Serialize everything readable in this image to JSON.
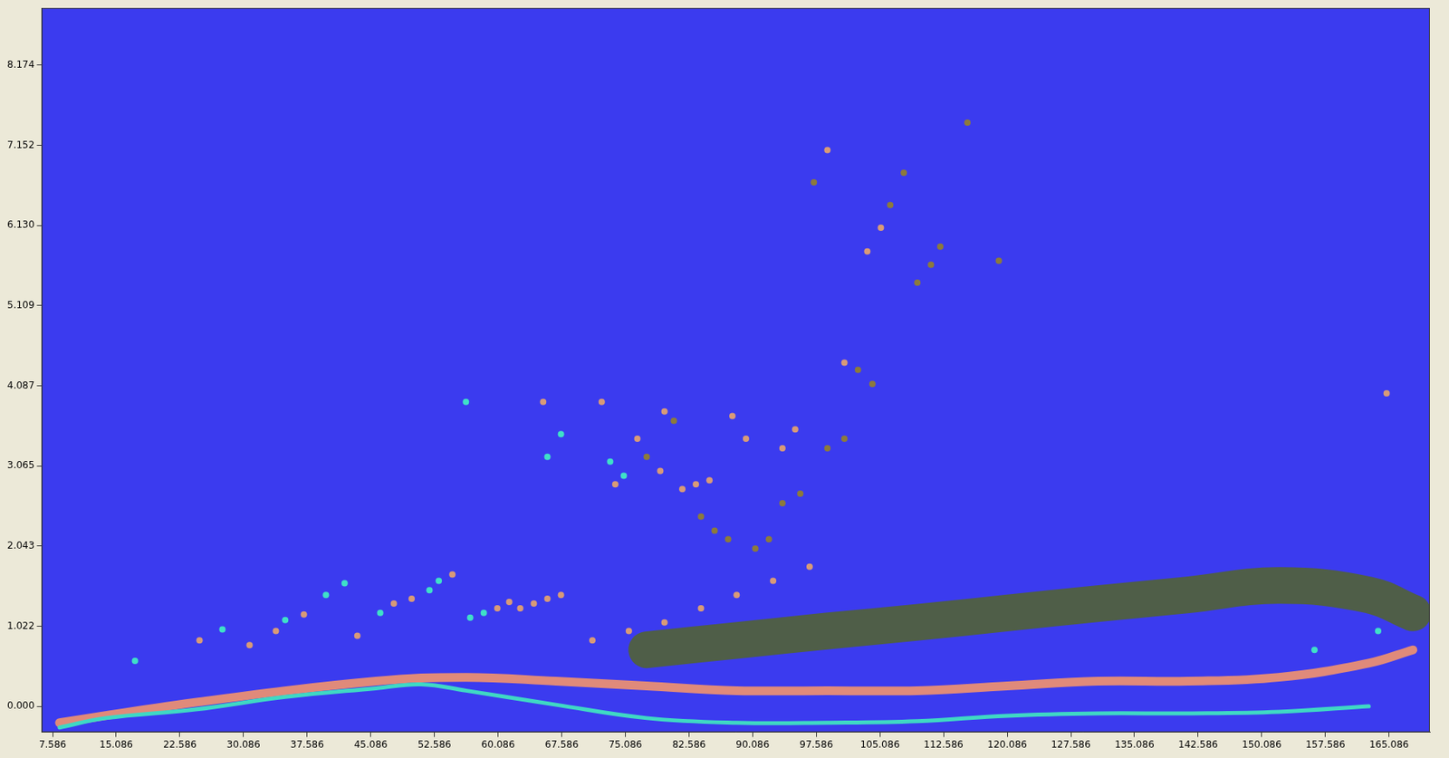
{
  "chart_data": {
    "type": "scatter",
    "xlim": [
      6.3,
      169.9
    ],
    "xticks": [
      7.586,
      15.086,
      22.586,
      30.086,
      37.586,
      45.086,
      52.586,
      60.086,
      67.586,
      75.086,
      82.586,
      90.086,
      97.586,
      105.086,
      112.586,
      120.086,
      127.586,
      135.086,
      142.586,
      150.086,
      157.586,
      165.086
    ],
    "ylim": [
      -0.33,
      8.9
    ],
    "yticks": [
      {
        "value": 0,
        "label": "0.000"
      },
      1.022,
      2.043,
      3.065,
      4.087,
      5.109,
      {
        "value": 6.13,
        "label": "6.130"
      },
      7.152,
      8.174
    ],
    "grid": false,
    "series": [
      {
        "type": "scatter",
        "color": "#3fe0c8",
        "marker": "circle",
        "x": [
          56.3,
          17.3,
          27.6,
          35.0,
          39.8,
          42.0,
          46.2,
          52.0,
          53.1,
          56.8,
          58.4,
          65.9,
          67.5,
          73.3,
          74.9,
          163.8,
          156.3
        ],
        "values": [
          3.88,
          0.58,
          0.98,
          1.1,
          1.42,
          1.57,
          1.19,
          1.48,
          1.6,
          1.13,
          1.19,
          3.18,
          3.47,
          3.12,
          2.94,
          0.96,
          0.72
        ]
      },
      {
        "type": "scatter",
        "color": "#d89a78",
        "marker": "circle",
        "x": [
          24.9,
          30.8,
          33.9,
          37.2,
          43.5,
          47.8,
          49.9,
          54.7,
          60.0,
          61.4,
          62.7,
          64.3,
          65.9,
          67.5,
          65.4,
          72.3,
          73.9,
          76.5,
          79.2,
          79.7,
          81.8,
          83.4,
          85.0,
          87.7,
          89.3,
          93.6,
          95.1,
          98.9,
          103.6,
          105.2,
          100.9,
          71.2,
          75.5,
          79.7,
          84.0,
          88.2,
          92.5,
          96.8,
          164.8
        ],
        "values": [
          0.84,
          0.78,
          0.96,
          1.17,
          0.9,
          1.31,
          1.37,
          1.68,
          1.25,
          1.33,
          1.25,
          1.31,
          1.37,
          1.42,
          3.88,
          3.88,
          2.83,
          3.41,
          3.0,
          3.76,
          2.77,
          2.83,
          2.88,
          3.7,
          3.41,
          3.29,
          3.53,
          7.09,
          5.8,
          6.1,
          4.38,
          0.84,
          0.96,
          1.07,
          1.25,
          1.42,
          1.6,
          1.78,
          3.99
        ]
      },
      {
        "type": "scatter",
        "color": "#8c7a3c",
        "marker": "circle",
        "x": [
          77.6,
          80.8,
          84.0,
          85.6,
          87.2,
          97.3,
          106.3,
          107.9,
          109.5,
          111.1,
          112.2,
          115.4,
          119.1,
          102.5,
          104.2,
          98.9,
          100.9,
          93.6,
          95.7,
          90.4,
          92.0
        ],
        "values": [
          3.18,
          3.64,
          2.42,
          2.24,
          2.13,
          6.68,
          6.39,
          6.8,
          5.4,
          5.63,
          5.86,
          7.44,
          5.68,
          4.29,
          4.11,
          3.29,
          3.41,
          2.59,
          2.71,
          2.01,
          2.13
        ]
      },
      {
        "type": "line",
        "color": "#3fd8c4",
        "line_style": "solid",
        "x": [
          8.4,
          13.8,
          24.4,
          35.0,
          45.7,
          51.0,
          56.3,
          66.9,
          77.6,
          88.2,
          98.9,
          109.5,
          120.1,
          130.8,
          141.4,
          152.1,
          162.7
        ],
        "values": [
          -0.27,
          -0.15,
          -0.04,
          0.12,
          0.23,
          0.28,
          0.2,
          0.02,
          -0.15,
          -0.21,
          -0.21,
          -0.19,
          -0.12,
          -0.09,
          -0.09,
          -0.07,
          0
        ]
      },
      {
        "type": "line",
        "color": "#e08a7a",
        "line_style": "solid",
        "x": [
          8.4,
          24.4,
          45.7,
          56.3,
          66.9,
          77.6,
          88.2,
          98.9,
          109.5,
          120.1,
          130.8,
          141.4,
          152.1,
          162.7,
          167.9
        ],
        "values": [
          -0.21,
          0.05,
          0.32,
          0.37,
          0.32,
          0.26,
          0.2,
          0.2,
          0.2,
          0.26,
          0.32,
          0.32,
          0.37,
          0.55,
          0.72
        ]
      },
      {
        "type": "line",
        "color": "#4f5e48",
        "line_style": "solid",
        "x": [
          77.6,
          88.2,
          98.9,
          109.5,
          120.1,
          130.8,
          141.4,
          152.1,
          162.7,
          167.9
        ],
        "values": [
          0.72,
          0.84,
          0.96,
          1.07,
          1.19,
          1.31,
          1.42,
          1.54,
          1.42,
          1.19
        ]
      }
    ]
  }
}
